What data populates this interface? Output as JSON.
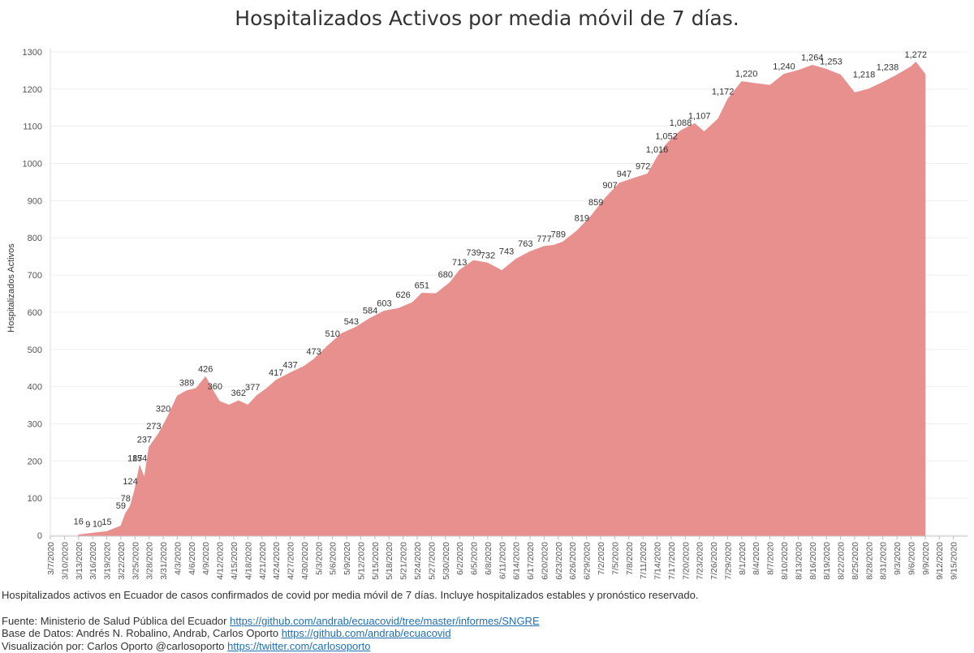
{
  "chart_data": {
    "type": "area",
    "title": "Hospitalizados Activos por media móvil de 7 días.",
    "ylabel": "Hospitalizados Activos",
    "xlabel": "",
    "ylim": [
      0,
      1300
    ],
    "yticks": [
      0,
      100,
      200,
      300,
      400,
      500,
      600,
      700,
      800,
      900,
      1000,
      1100,
      1200,
      1300
    ],
    "xtick_labels": [
      "3/7/2020",
      "3/10/2020",
      "3/13/2020",
      "3/16/2020",
      "3/19/2020",
      "3/22/2020",
      "3/25/2020",
      "3/28/2020",
      "3/31/2020",
      "4/3/2020",
      "4/6/2020",
      "4/9/2020",
      "4/12/2020",
      "4/15/2020",
      "4/18/2020",
      "4/21/2020",
      "4/24/2020",
      "4/27/2020",
      "4/30/2020",
      "5/3/2020",
      "5/6/2020",
      "5/9/2020",
      "5/12/2020",
      "5/15/2020",
      "5/18/2020",
      "5/21/2020",
      "5/24/2020",
      "5/27/2020",
      "5/30/2020",
      "6/2/2020",
      "6/5/2020",
      "6/8/2020",
      "6/11/2020",
      "6/14/2020",
      "6/17/2020",
      "6/20/2020",
      "6/23/2020",
      "6/26/2020",
      "6/29/2020",
      "7/2/2020",
      "7/5/2020",
      "7/8/2020",
      "7/11/2020",
      "7/14/2020",
      "7/17/2020",
      "7/20/2020",
      "7/23/2020",
      "7/26/2020",
      "7/29/2020",
      "8/1/2020",
      "8/4/2020",
      "8/7/2020",
      "8/10/2020",
      "8/13/2020",
      "8/16/2020",
      "8/19/2020",
      "8/22/2020",
      "8/25/2020",
      "8/28/2020",
      "8/31/2020",
      "9/3/2020",
      "9/6/2020",
      "9/9/2020",
      "9/12/2020",
      "9/15/2020"
    ],
    "fill_color": "#e8908e",
    "grid": true,
    "series": [
      {
        "points": [
          [
            "3/13/2020",
            1
          ],
          [
            "3/16/2020",
            6
          ],
          [
            "3/19/2020",
            10
          ],
          [
            "3/20/2020",
            15
          ],
          [
            "3/22/2020",
            25
          ],
          [
            "3/23/2020",
            59
          ],
          [
            "3/24/2020",
            78
          ],
          [
            "3/25/2020",
            124
          ],
          [
            "3/27/2020",
            154
          ],
          [
            "3/26/2020",
            187
          ],
          [
            "3/28/2020",
            237
          ],
          [
            "3/30/2020",
            273
          ],
          [
            "4/1/2020",
            320
          ],
          [
            "4/3/2020",
            375
          ],
          [
            "4/5/2020",
            389
          ],
          [
            "4/7/2020",
            395
          ],
          [
            "4/9/2020",
            426
          ],
          [
            "4/11/2020",
            380
          ],
          [
            "4/12/2020",
            360
          ],
          [
            "4/14/2020",
            350
          ],
          [
            "4/16/2020",
            362
          ],
          [
            "4/18/2020",
            350
          ],
          [
            "4/20/2020",
            377
          ],
          [
            "4/22/2020",
            395
          ],
          [
            "4/24/2020",
            417
          ],
          [
            "4/27/2020",
            437
          ],
          [
            "4/30/2020",
            455
          ],
          [
            "5/2/2020",
            473
          ],
          [
            "5/5/2020",
            510
          ],
          [
            "5/8/2020",
            543
          ],
          [
            "5/11/2020",
            560
          ],
          [
            "5/14/2020",
            584
          ],
          [
            "5/17/2020",
            603
          ],
          [
            "5/20/2020",
            610
          ],
          [
            "5/23/2020",
            626
          ],
          [
            "5/25/2020",
            651
          ],
          [
            "5/28/2020",
            650
          ],
          [
            "5/31/2020",
            680
          ],
          [
            "6/2/2020",
            713
          ],
          [
            "6/5/2020",
            739
          ],
          [
            "6/8/2020",
            732
          ],
          [
            "6/11/2020",
            712
          ],
          [
            "6/14/2020",
            743
          ],
          [
            "6/17/2020",
            763
          ],
          [
            "6/20/2020",
            777
          ],
          [
            "6/22/2020",
            780
          ],
          [
            "6/24/2020",
            789
          ],
          [
            "6/27/2020",
            819
          ],
          [
            "6/30/2020",
            859
          ],
          [
            "7/3/2020",
            907
          ],
          [
            "7/6/2020",
            947
          ],
          [
            "7/9/2020",
            960
          ],
          [
            "7/12/2020",
            972
          ],
          [
            "7/14/2020",
            1016
          ],
          [
            "7/16/2020",
            1052
          ],
          [
            "7/19/2020",
            1088
          ],
          [
            "7/22/2020",
            1107
          ],
          [
            "7/24/2020",
            1085
          ],
          [
            "7/27/2020",
            1120
          ],
          [
            "7/29/2020",
            1172
          ],
          [
            "8/1/2020",
            1220
          ],
          [
            "8/4/2020",
            1215
          ],
          [
            "8/7/2020",
            1210
          ],
          [
            "8/10/2020",
            1240
          ],
          [
            "8/13/2020",
            1250
          ],
          [
            "8/16/2020",
            1264
          ],
          [
            "8/19/2020",
            1253
          ],
          [
            "8/22/2020",
            1238
          ],
          [
            "8/25/2020",
            1190
          ],
          [
            "8/28/2020",
            1200
          ],
          [
            "8/31/2020",
            1218
          ],
          [
            "9/3/2020",
            1238
          ],
          [
            "9/6/2020",
            1260
          ],
          [
            "9/7/2020",
            1272
          ],
          [
            "9/9/2020",
            1240
          ]
        ]
      }
    ],
    "data_labels": [
      {
        "date": "3/13/2020",
        "value": "16"
      },
      {
        "date": "3/15/2020",
        "value": "9"
      },
      {
        "date": "3/17/2020",
        "value": "10"
      },
      {
        "date": "3/19/2020",
        "value": "15"
      },
      {
        "date": "3/22/2020",
        "value": "59"
      },
      {
        "date": "3/23/2020",
        "value": "78"
      },
      {
        "date": "3/24/2020",
        "value": "124"
      },
      {
        "date": "3/25/2020",
        "value": "187"
      },
      {
        "date": "3/26/2020",
        "value": "154"
      },
      {
        "date": "3/27/2020",
        "value": "237"
      },
      {
        "date": "3/29/2020",
        "value": "273"
      },
      {
        "date": "3/31/2020",
        "value": "320"
      },
      {
        "date": "4/5/2020",
        "value": "389"
      },
      {
        "date": "4/9/2020",
        "value": "426"
      },
      {
        "date": "4/11/2020",
        "value": "360"
      },
      {
        "date": "4/16/2020",
        "value": "362"
      },
      {
        "date": "4/19/2020",
        "value": "377"
      },
      {
        "date": "4/24/2020",
        "value": "417"
      },
      {
        "date": "4/27/2020",
        "value": "437"
      },
      {
        "date": "5/2/2020",
        "value": "473"
      },
      {
        "date": "5/6/2020",
        "value": "510"
      },
      {
        "date": "5/10/2020",
        "value": "543"
      },
      {
        "date": "5/14/2020",
        "value": "584"
      },
      {
        "date": "5/17/2020",
        "value": "603"
      },
      {
        "date": "5/21/2020",
        "value": "626"
      },
      {
        "date": "5/25/2020",
        "value": "651"
      },
      {
        "date": "5/30/2020",
        "value": "680"
      },
      {
        "date": "6/2/2020",
        "value": "713"
      },
      {
        "date": "6/5/2020",
        "value": "739"
      },
      {
        "date": "6/8/2020",
        "value": "732"
      },
      {
        "date": "6/12/2020",
        "value": "743"
      },
      {
        "date": "6/16/2020",
        "value": "763"
      },
      {
        "date": "6/20/2020",
        "value": "777"
      },
      {
        "date": "6/23/2020",
        "value": "789"
      },
      {
        "date": "6/28/2020",
        "value": "819"
      },
      {
        "date": "7/1/2020",
        "value": "859"
      },
      {
        "date": "7/4/2020",
        "value": "907"
      },
      {
        "date": "7/7/2020",
        "value": "947"
      },
      {
        "date": "7/11/2020",
        "value": "972"
      },
      {
        "date": "7/14/2020",
        "value": "1,016"
      },
      {
        "date": "7/16/2020",
        "value": "1,052"
      },
      {
        "date": "7/19/2020",
        "value": "1,088"
      },
      {
        "date": "7/23/2020",
        "value": "1,107"
      },
      {
        "date": "7/28/2020",
        "value": "1,172"
      },
      {
        "date": "8/2/2020",
        "value": "1,220"
      },
      {
        "date": "8/10/2020",
        "value": "1,240"
      },
      {
        "date": "8/16/2020",
        "value": "1,264"
      },
      {
        "date": "8/20/2020",
        "value": "1,253"
      },
      {
        "date": "8/27/2020",
        "value": "1,218"
      },
      {
        "date": "9/1/2020",
        "value": "1,238"
      },
      {
        "date": "9/7/2020",
        "value": "1,272"
      }
    ]
  },
  "caption": "Hospitalizados activos en Ecuador de casos confirmados de covid por media móvil de 7 días. Incluye hospitalizados estables y pronóstico reservado.",
  "sources": [
    {
      "prefix": "Fuente: Ministerio de Salud Pública del Ecuador ",
      "link": "https://github.com/andrab/ecuacovid/tree/master/informes/SNGRE"
    },
    {
      "prefix": "Base de Datos: Andrés N. Robalino, Andrab, Carlos Oporto ",
      "link": "https://github.com/andrab/ecuacovid"
    },
    {
      "prefix": "Visualización por: Carlos Oporto @carlosoporto ",
      "link": "https://twitter.com/carlosoporto"
    }
  ]
}
